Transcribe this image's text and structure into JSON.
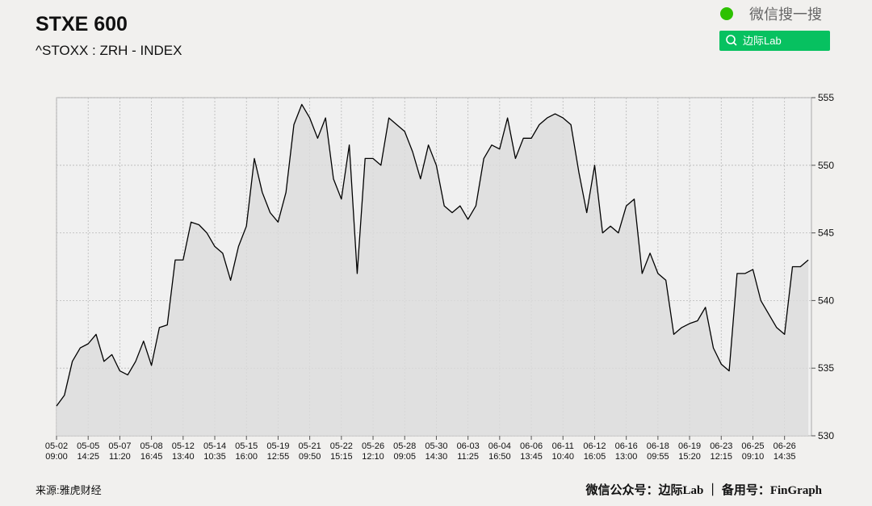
{
  "chart_data": {
    "type": "line",
    "title": "STXE 600",
    "subtitle": "^STOXX : ZRH - INDEX",
    "source": "来源:雅虎财经",
    "footer": "微信公众号：边际Lab ｜ 备用号：FinGraph",
    "watermark": "微信搜一搜",
    "search_button": "边际Lab",
    "x": [
      0,
      0.25,
      0.5,
      0.75,
      1,
      1.25,
      1.5,
      1.75,
      2,
      2.25,
      2.5,
      2.75,
      3,
      3.25,
      3.5,
      3.75,
      4,
      4.25,
      4.5,
      4.75,
      5,
      5.25,
      5.5,
      5.75,
      6,
      6.25,
      6.5,
      6.75,
      7,
      7.25,
      7.5,
      7.75,
      8,
      8.25,
      8.5,
      8.75,
      9,
      9.25,
      9.5,
      9.75,
      10,
      10.25,
      10.5,
      10.75,
      11,
      11.25,
      11.5,
      11.75,
      12,
      12.25,
      12.5,
      12.75,
      13,
      13.25,
      13.5,
      13.75,
      14,
      14.25,
      14.5,
      14.75,
      15,
      15.25,
      15.5,
      15.75,
      16,
      16.25,
      16.5,
      16.75,
      17,
      17.25,
      17.5,
      17.75,
      18,
      18.25,
      18.5,
      18.75,
      19,
      19.25,
      19.5,
      19.75,
      20,
      20.25,
      20.5,
      20.75,
      21,
      21.25,
      21.5,
      21.75,
      22,
      22.25,
      22.5,
      22.75,
      23,
      23.25,
      23.5,
      23.75
    ],
    "series": [
      {
        "name": "STXE 600",
        "color": "#000000",
        "fill": "#dcdcdc",
        "values": [
          532.2,
          533,
          535.5,
          536.5,
          536.8,
          537.5,
          535.5,
          536,
          534.8,
          534.5,
          535.5,
          537,
          535.2,
          538,
          538.2,
          543,
          543,
          545.8,
          545.6,
          545,
          544,
          543.5,
          541.5,
          544,
          545.5,
          550.5,
          548,
          546.5,
          545.8,
          548,
          553,
          554.5,
          553.5,
          552,
          553.5,
          549,
          547.5,
          551.5,
          542,
          550.5,
          550.5,
          550,
          553.5,
          553,
          552.5,
          551,
          549,
          551.5,
          550,
          547,
          546.5,
          547,
          546,
          547,
          550.5,
          551.5,
          551.2,
          553.5,
          550.5,
          552,
          552,
          553,
          553.5,
          553.8,
          553.5,
          553,
          549.5,
          546.5,
          550,
          545,
          545.5,
          545,
          547,
          547.5,
          542,
          543.5,
          542,
          541.5,
          537.5,
          538,
          538.3,
          538.5,
          539.5,
          536.5,
          535.3,
          534.8,
          542,
          542,
          542.3,
          540,
          539,
          538,
          537.5,
          542.5,
          542.5,
          543
        ]
      }
    ],
    "xlim": [
      0,
      23.85
    ],
    "xticks": [
      {
        "value": 0,
        "label": "05-02 09:00"
      },
      {
        "value": 1,
        "label": "05-05 14:25"
      },
      {
        "value": 2,
        "label": "05-07 11:20"
      },
      {
        "value": 3,
        "label": "05-08 16:45"
      },
      {
        "value": 4,
        "label": "05-12 13:40"
      },
      {
        "value": 5,
        "label": "05-14 10:35"
      },
      {
        "value": 6,
        "label": "05-15 16:00"
      },
      {
        "value": 7,
        "label": "05-19 12:55"
      },
      {
        "value": 8,
        "label": "05-21 09:50"
      },
      {
        "value": 9,
        "label": "05-22 15:15"
      },
      {
        "value": 10,
        "label": "05-26 12:10"
      },
      {
        "value": 11,
        "label": "05-28 09:05"
      },
      {
        "value": 12,
        "label": "05-30 14:30"
      },
      {
        "value": 13,
        "label": "06-03 11:25"
      },
      {
        "value": 14,
        "label": "06-04 16:50"
      },
      {
        "value": 15,
        "label": "06-06 13:45"
      },
      {
        "value": 16,
        "label": "06-11 10:40"
      },
      {
        "value": 17,
        "label": "06-12 16:05"
      },
      {
        "value": 18,
        "label": "06-16 13:00"
      },
      {
        "value": 19,
        "label": "06-18 09:55"
      },
      {
        "value": 20,
        "label": "06-19 15:20"
      },
      {
        "value": 21,
        "label": "06-23 12:15"
      },
      {
        "value": 22,
        "label": "06-25 09:10"
      },
      {
        "value": 23,
        "label": "06-26 14:35"
      }
    ],
    "ylim": [
      530,
      555
    ],
    "yticks": [
      530,
      535,
      540,
      545,
      550,
      555
    ],
    "grid": true
  }
}
